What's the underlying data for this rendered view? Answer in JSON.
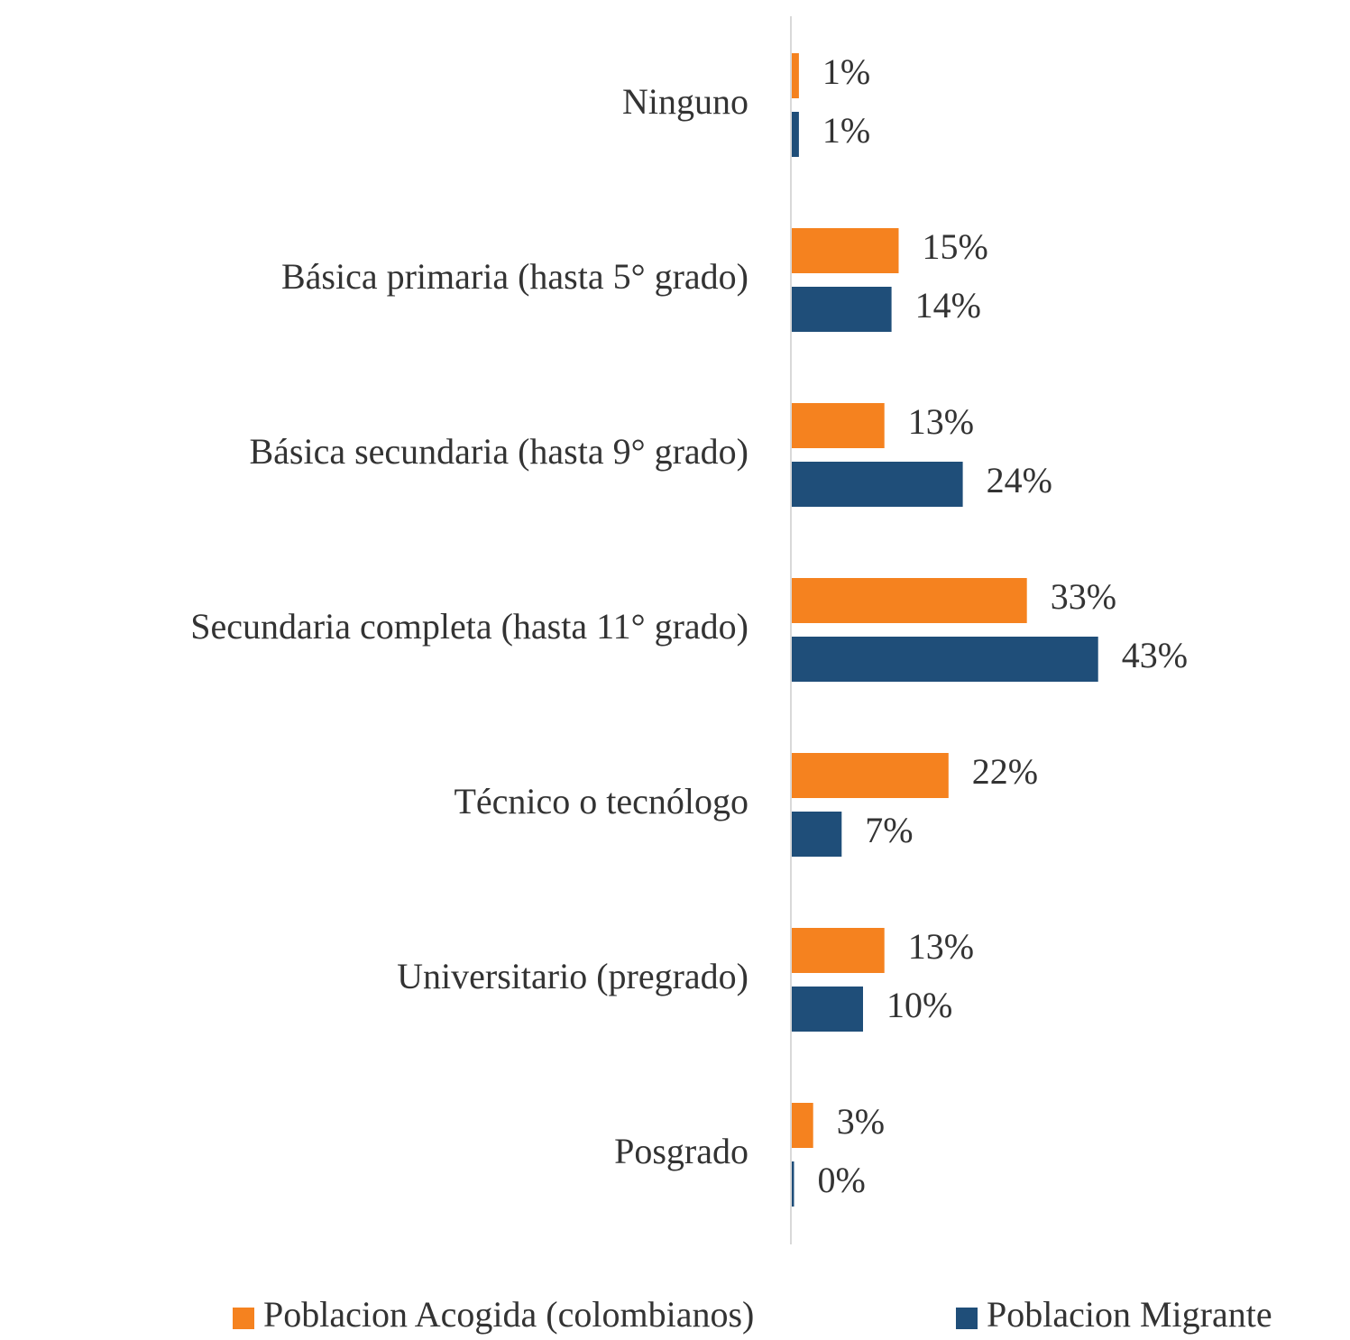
{
  "chart_data": {
    "type": "bar",
    "orientation": "horizontal",
    "categories": [
      "Ninguno",
      "Básica primaria (hasta 5° grado)",
      "Básica secundaria (hasta 9° grado)",
      "Secundaria completa (hasta 11° grado)",
      "Técnico o tecnólogo",
      "Universitario (pregrado)",
      "Posgrado"
    ],
    "series": [
      {
        "name": "Poblacion Acogida (colombianos)",
        "color": "#f5821f",
        "values": [
          1,
          15,
          13,
          33,
          22,
          13,
          3
        ],
        "value_labels": [
          "1%",
          "15%",
          "13%",
          "33%",
          "22%",
          "13%",
          "3%"
        ]
      },
      {
        "name": "Poblacion Migrante",
        "color": "#1f4e79",
        "values": [
          1,
          14,
          24,
          43,
          7,
          10,
          0
        ],
        "value_labels": [
          "1%",
          "14%",
          "24%",
          "43%",
          "7%",
          "10%",
          "0%"
        ]
      }
    ],
    "legend": "bottom"
  }
}
